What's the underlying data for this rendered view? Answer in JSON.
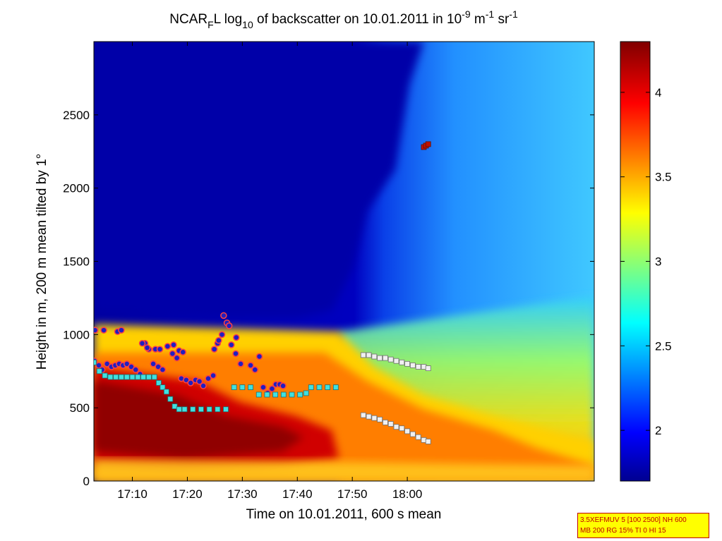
{
  "chart_data": {
    "type": "heatmap",
    "title": {
      "prefix": "NCAR",
      "sub1": "F",
      "after1": "L log",
      "sub2": "10",
      "after2": " of backscatter on 10.01.2011 in 10",
      "sup1": "-9",
      "after3": " m",
      "sup2": "-1",
      "after4": " sr",
      "sup3": "-1"
    },
    "xlabel": "Time on 10.01.2011, 600 s mean",
    "ylabel": "Height in m, 200 m mean tilted by 1°",
    "x_range_min": [
      1023,
      1114
    ],
    "y_range_m": [
      0,
      3000
    ],
    "x_ticks": [
      {
        "value": 1030,
        "label": "17:10"
      },
      {
        "value": 1040,
        "label": "17:20"
      },
      {
        "value": 1050,
        "label": "17:30"
      },
      {
        "value": 1060,
        "label": "17:40"
      },
      {
        "value": 1070,
        "label": "17:50"
      },
      {
        "value": 1080,
        "label": "18:00"
      }
    ],
    "y_ticks": [
      {
        "value": 0,
        "label": "0"
      },
      {
        "value": 500,
        "label": "500"
      },
      {
        "value": 1000,
        "label": "1000"
      },
      {
        "value": 1500,
        "label": "1500"
      },
      {
        "value": 2000,
        "label": "2000"
      },
      {
        "value": 2500,
        "label": "2500"
      }
    ],
    "colorbar": {
      "range": [
        1.7,
        4.3
      ],
      "ticks": [
        {
          "value": 2,
          "label": "2"
        },
        {
          "value": 2.5,
          "label": "2.5"
        },
        {
          "value": 3,
          "label": "3"
        },
        {
          "value": 3.5,
          "label": "3.5"
        },
        {
          "value": 4,
          "label": "4"
        }
      ]
    },
    "series": [
      {
        "name": "cloud/layer height (blue circles)",
        "x": [
          1023.1,
          1023.9,
          1024.5,
          1025.4,
          1026.2,
          1026.9,
          1027.6,
          1028.3,
          1029.0,
          1029.8,
          1030.6,
          1031.4,
          1032.3,
          1033.0,
          1033.8,
          1034.7,
          1035.5,
          1036.4,
          1037.3,
          1038.1,
          1038.9,
          1039.8,
          1040.6,
          1041.5,
          1042.2,
          1042.9,
          1043.8,
          1044.7,
          1045.5,
          1046.3,
          1047.2,
          1048.0,
          1048.8,
          1049.7,
          1051.5,
          1052.3,
          1053.1,
          1053.8,
          1054.6,
          1055.4,
          1056.1,
          1056.8,
          1057.4
        ],
        "y": [
          820,
          790,
          760,
          800,
          780,
          790,
          800,
          790,
          800,
          780,
          760,
          730,
          940,
          900,
          800,
          780,
          760,
          920,
          870,
          840,
          700,
          690,
          670,
          690,
          680,
          650,
          700,
          720,
          940,
          1000,
          1080,
          930,
          870,
          800,
          790,
          760,
          850,
          640,
          600,
          630,
          660,
          660,
          650
        ]
      },
      {
        "name": "upper layer (blue circles, upper branch)",
        "x": [
          1023.2,
          1024.8,
          1027.3,
          1028.0,
          1031.8,
          1032.7,
          1034.2,
          1035.0,
          1037.5,
          1038.5,
          1039.2,
          1044.9,
          1045.7,
          1046.6,
          1047.6,
          1048.9
        ],
        "y": [
          1030,
          1030,
          1020,
          1030,
          940,
          910,
          900,
          900,
          930,
          890,
          880,
          900,
          960,
          1130,
          1060,
          980
        ]
      },
      {
        "name": "boundary layer height (cyan squares)",
        "x": [
          1023,
          1024,
          1025,
          1026,
          1027,
          1028,
          1029,
          1030,
          1031,
          1032,
          1033,
          1034,
          1034.8,
          1035.5,
          1036.2,
          1036.9,
          1037.7,
          1038.5,
          1039.5,
          1041.0,
          1042.5,
          1044.0,
          1045.5,
          1047.0,
          1048.5,
          1050.0,
          1051.5,
          1053.0,
          1054.5,
          1056.0,
          1057.5,
          1059.0,
          1060.5,
          1061.6,
          1062.5,
          1064.0,
          1065.5,
          1067.0
        ],
        "y": [
          810,
          750,
          720,
          710,
          710,
          710,
          710,
          710,
          710,
          710,
          710,
          710,
          670,
          640,
          610,
          560,
          510,
          490,
          490,
          490,
          490,
          490,
          490,
          490,
          640,
          640,
          640,
          590,
          590,
          590,
          590,
          590,
          590,
          600,
          640,
          640,
          640,
          640
        ]
      },
      {
        "name": "residual layer upper (white squares)",
        "x": [
          1072.0,
          1073.0,
          1074.0,
          1075.0,
          1076.0,
          1077.0,
          1078.0,
          1079.0,
          1080.0,
          1081.0,
          1082.0,
          1083.0,
          1083.8
        ],
        "y": [
          860,
          860,
          850,
          840,
          840,
          830,
          820,
          810,
          800,
          790,
          780,
          780,
          770
        ]
      },
      {
        "name": "residual layer lower (white squares)",
        "x": [
          1072.0,
          1073.0,
          1074.0,
          1075.0,
          1076.0,
          1077.0,
          1078.0,
          1079.0,
          1080.0,
          1081.0,
          1082.0,
          1083.0,
          1083.8
        ],
        "y": [
          450,
          440,
          430,
          420,
          400,
          390,
          370,
          360,
          340,
          320,
          300,
          280,
          270
        ]
      },
      {
        "name": "high cloud (red squares)",
        "x": [
          1083.0,
          1083.4,
          1083.8
        ],
        "y": [
          2280,
          2290,
          2300
        ]
      }
    ]
  },
  "info_box": {
    "line1": "3.5XEFMUV 5 [100 2500] NH 600",
    "line2": "MB 200 RG 15% TI 0 HI 15"
  },
  "colors": {
    "circle_fill": "#2020c0",
    "circle_edge": "#ff4040",
    "cyan_square": "#40e0e0",
    "white_square": "#f0f0f0",
    "red_square": "#c01000"
  }
}
